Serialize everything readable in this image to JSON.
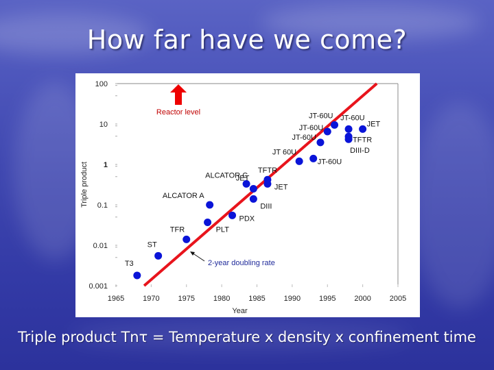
{
  "slide": {
    "title": "How far have we come?",
    "caption": "Triple product Tnτ = Temperature x density x confinement time"
  },
  "chart_data": {
    "type": "scatter",
    "title": "",
    "xlabel": "Year",
    "ylabel": "Triple product",
    "xlim": [
      1965,
      2005
    ],
    "ylim": [
      0.001,
      100
    ],
    "yscale": "log",
    "x_ticks": [
      "1965",
      "1970",
      "1975",
      "1980",
      "1985",
      "1990",
      "1995",
      "2000",
      "2005"
    ],
    "y_ticks": [
      "100",
      "10",
      "1",
      "0.1",
      "0.01",
      "0.001"
    ],
    "grid": false,
    "points": [
      {
        "label": "T3",
        "x": 1968,
        "y": 0.0018
      },
      {
        "label": "ST",
        "x": 1971,
        "y": 0.0055
      },
      {
        "label": "TFR",
        "x": 1975,
        "y": 0.014
      },
      {
        "label": "PLT",
        "x": 1978,
        "y": 0.037
      },
      {
        "label": "ALCATOR A",
        "x": 1978.3,
        "y": 0.1
      },
      {
        "label": "PDX",
        "x": 1981.5,
        "y": 0.055
      },
      {
        "label": "ALCATOR C",
        "x": 1983.5,
        "y": 0.33
      },
      {
        "label": "JET",
        "x": 1984.5,
        "y": 0.25
      },
      {
        "label": "DIII",
        "x": 1984.5,
        "y": 0.14
      },
      {
        "label": "TFTR",
        "x": 1986.5,
        "y": 0.42
      },
      {
        "label": "JET",
        "x": 1986.5,
        "y": 0.33
      },
      {
        "label": "JT 60U",
        "x": 1991,
        "y": 1.2
      },
      {
        "label": "JT-60U",
        "x": 1993,
        "y": 1.4
      },
      {
        "label": "JT-60U",
        "x": 1994,
        "y": 3.5
      },
      {
        "label": "JT-60U",
        "x": 1995,
        "y": 6.5
      },
      {
        "label": "JT-60U",
        "x": 1996,
        "y": 9.5
      },
      {
        "label": "JT-60U",
        "x": 1998,
        "y": 7.5
      },
      {
        "label": "JET",
        "x": 2000,
        "y": 7.5
      },
      {
        "label": "TFTR",
        "x": 1998,
        "y": 4.9
      },
      {
        "label": "DIII-D",
        "x": 1998,
        "y": 4.2
      }
    ],
    "trend_line": {
      "label": "2-year doubling rate",
      "x": [
        1969,
        2002
      ],
      "y": [
        0.001,
        100
      ],
      "color": "#e8141c"
    },
    "reference_line": {
      "label": "Reactor level",
      "y": 100,
      "color": "#c00000"
    },
    "point_color": "#0a14d8",
    "annotation_color": "#1f2a9a"
  }
}
